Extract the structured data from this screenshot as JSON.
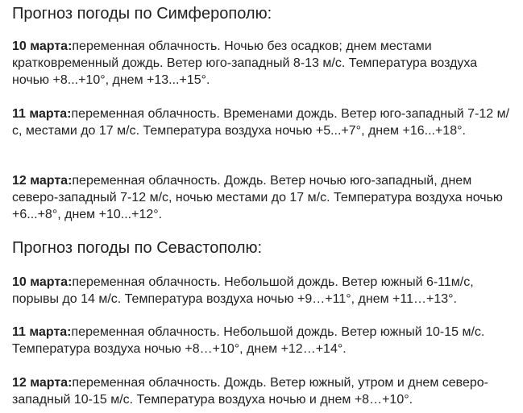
{
  "sections": [
    {
      "title": "Прогноз погоды по Симферополю:",
      "items": [
        {
          "date": "10 марта:",
          "text": "переменная облачность. Ночью без осадков; днем местами кратковременный дождь. Ветер юго-западный 8-13 м/с. Температура воздуха ночью +8...+10°, днем +13...+15°."
        },
        {
          "date": "11 марта:",
          "text": "переменная облачность. Временами дождь. Ветер юго-западный 7-12 м/с, местами до 17 м/с. Температура воздуха ночью +5...+7°, днем +16...+18°."
        },
        {
          "date": "12 марта:",
          "text": "переменная облачность. Дождь. Ветер ночью юго-западный, днем северо-западный 7-12 м/с, ночью местами до 17 м/с. Температура воздуха ночью +6...+8°, днем +10...+12°."
        }
      ]
    },
    {
      "title": "Прогноз погоды по Севастополю:",
      "items": [
        {
          "date": "10 марта:",
          "text": "переменная облачность. Небольшой дождь. Ветер южный 6-11м/с, порывы до 14 м/с. Температура воздуха ночью +9…+11°, днем +11…+13°."
        },
        {
          "date": "11 марта:",
          "text": "переменная облачность. Небольшой дождь. Ветер южный 10-15 м/с. Температура воздуха ночью +8…+10°, днем +12…+14°."
        },
        {
          "date": "12 марта:",
          "text": "переменная облачность. Дождь. Ветер южный, утром и днем северо-западный 10-15 м/с. Температура воздуха ночью и днем +8…+10°."
        }
      ]
    }
  ]
}
